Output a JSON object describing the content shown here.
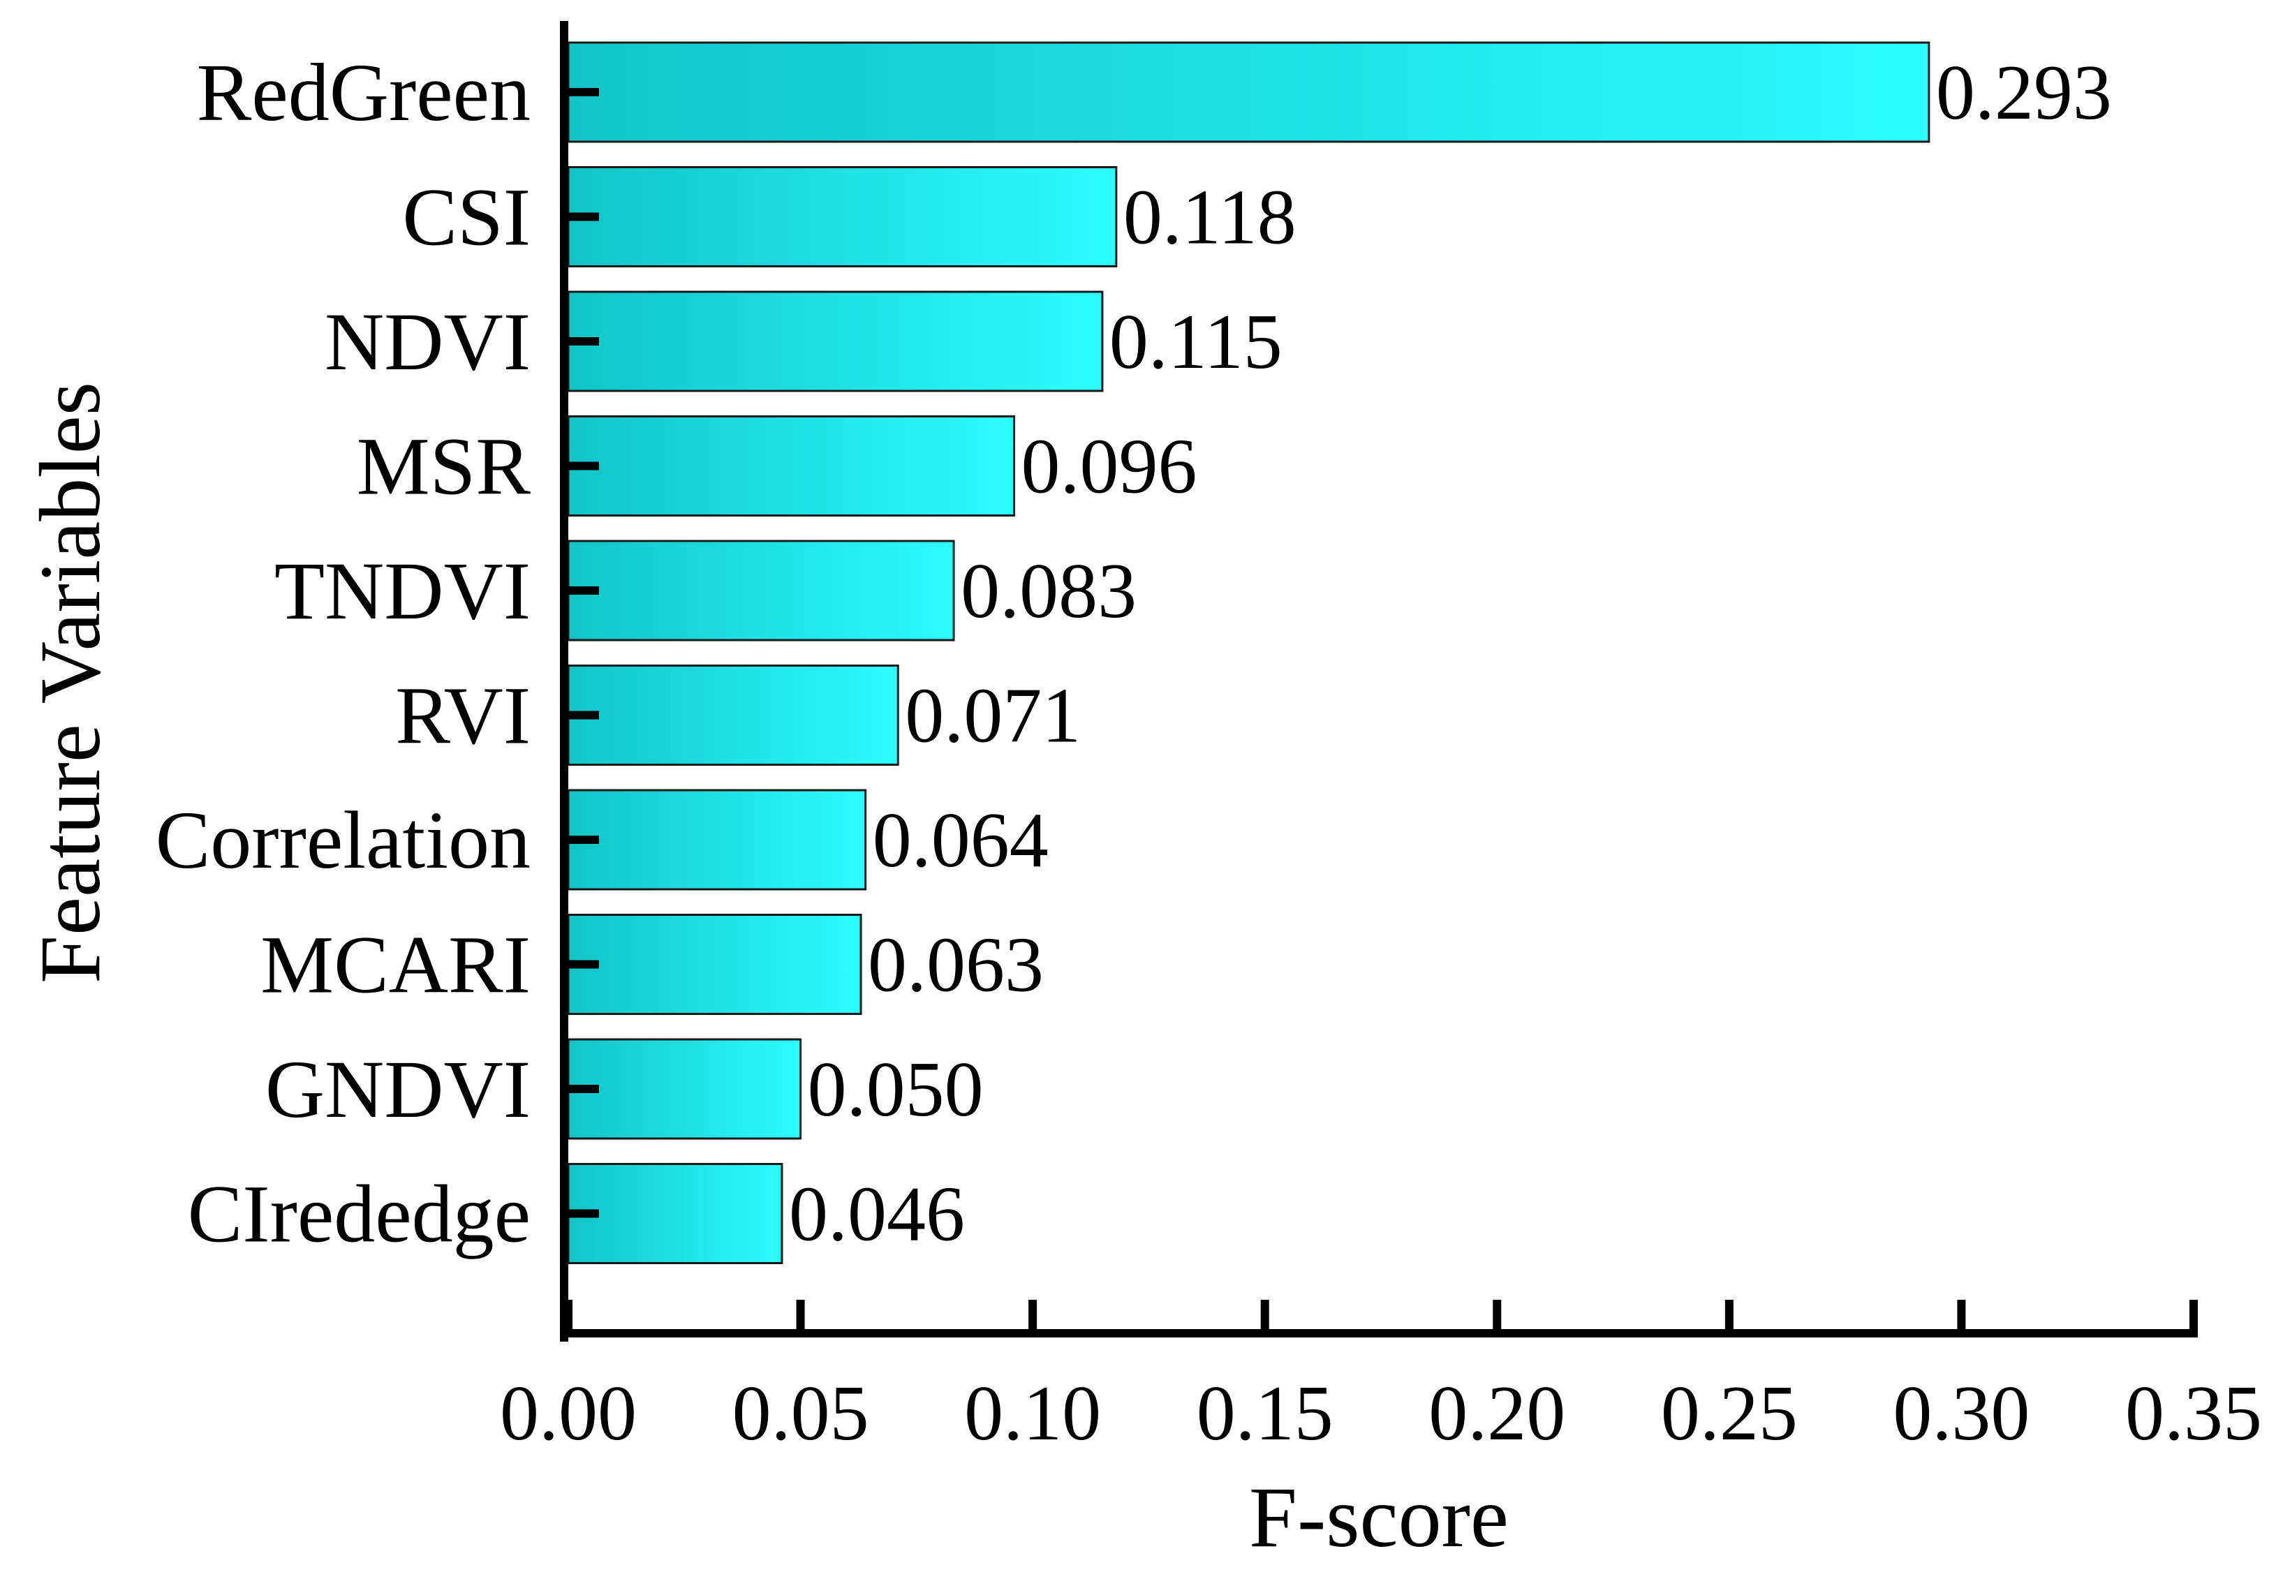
{
  "chart_data": {
    "type": "bar",
    "orientation": "horizontal",
    "xlabel": "F-score",
    "ylabel": "Feature Variables",
    "xlim": [
      0,
      0.35
    ],
    "xticks": [
      "0.00",
      "0.05",
      "0.10",
      "0.15",
      "0.20",
      "0.25",
      "0.30",
      "0.35"
    ],
    "categories": [
      "RedGreen",
      "CSI",
      "NDVI",
      "MSR",
      "TNDVI",
      "RVI",
      "Correlation",
      "MCARI",
      "GNDVI",
      "CIrededge"
    ],
    "values": [
      0.293,
      0.118,
      0.115,
      0.096,
      0.083,
      0.071,
      0.064,
      0.063,
      0.05,
      0.046
    ],
    "value_labels": [
      "0.293",
      "0.118",
      "0.115",
      "0.096",
      "0.083",
      "0.071",
      "0.064",
      "0.063",
      "0.050",
      "0.046"
    ],
    "colors": {
      "bar_start": "#12c4c8",
      "bar_end": "#2dfdff",
      "bar_stroke": "#1a1a1a",
      "axis": "#000000"
    }
  }
}
